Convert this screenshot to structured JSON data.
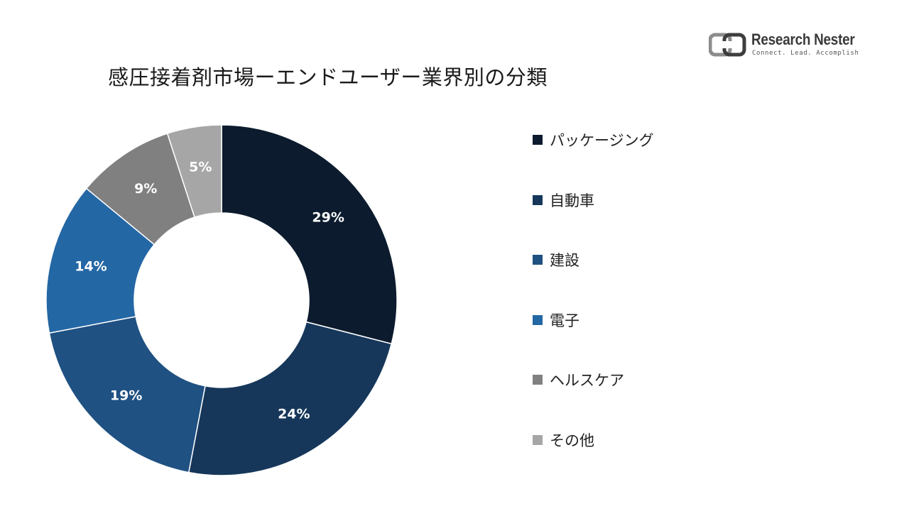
{
  "logo": {
    "name": "Research Nester",
    "tagline": "Connect. Lead. Accomplish"
  },
  "chart_data": {
    "type": "pie",
    "variant": "donut",
    "title": "感圧接着剤市場ーエンドユーザー業界別の分類",
    "categories": [
      "パッケージング",
      "自動車",
      "建設",
      "電子",
      "ヘルスケア",
      "その他"
    ],
    "values": [
      29,
      24,
      19,
      14,
      9,
      5
    ],
    "value_labels": [
      "29%",
      "24%",
      "19%",
      "14%",
      "9%",
      "5%"
    ],
    "unit": "%",
    "colors": [
      "#0c1b2d",
      "#16375a",
      "#1f5182",
      "#2467a5",
      "#808080",
      "#a6a6a6"
    ],
    "legend_position": "right"
  }
}
